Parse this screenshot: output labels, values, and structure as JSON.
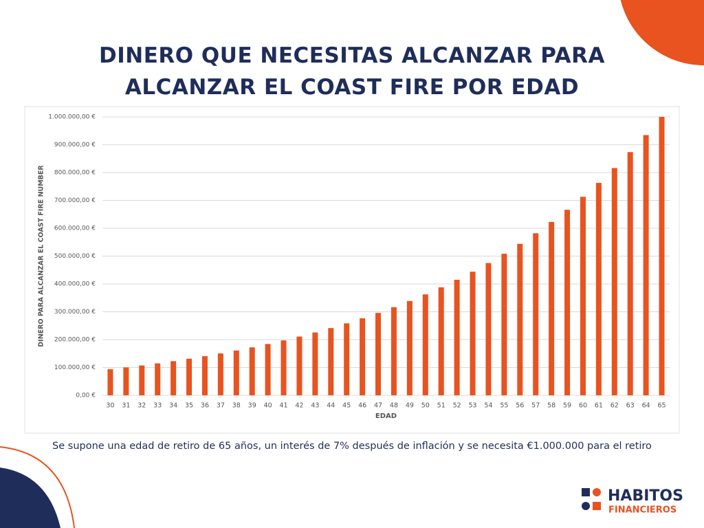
{
  "chart_data": {
    "type": "bar",
    "title": "DINERO QUE NECESITAS ALCANZAR PARA ALCANZAR EL COAST FIRE POR EDAD",
    "x_label": "EDAD",
    "y_label": "DINERO  PARA ALCANZAR EL COAST FIRE NUMBER",
    "categories": [
      "30",
      "31",
      "32",
      "33",
      "34",
      "35",
      "36",
      "37",
      "38",
      "39",
      "40",
      "41",
      "42",
      "43",
      "44",
      "45",
      "46",
      "47",
      "48",
      "49",
      "50",
      "51",
      "52",
      "53",
      "54",
      "55",
      "56",
      "57",
      "58",
      "59",
      "60",
      "61",
      "62",
      "63",
      "64",
      "65"
    ],
    "values": [
      93663,
      100219,
      107235,
      114741,
      122773,
      131367,
      140563,
      150402,
      160930,
      172195,
      184249,
      197147,
      210947,
      225713,
      241513,
      258419,
      276508,
      295864,
      316574,
      338735,
      362446,
      387817,
      414964,
      444012,
      475093,
      508349,
      543934,
      582009,
      622750,
      666342,
      712986,
      762895,
      816298,
      873439,
      934579,
      1000000
    ],
    "color": "#e8531f",
    "ylim": [
      0,
      1000000
    ],
    "yticks": [
      {
        "value": 0,
        "label": "0,00 €"
      },
      {
        "value": 100000,
        "label": "100.000,00 €"
      },
      {
        "value": 200000,
        "label": "200.000,00 €"
      },
      {
        "value": 300000,
        "label": "300.000,00 €"
      },
      {
        "value": 400000,
        "label": "400.000,00 €"
      },
      {
        "value": 500000,
        "label": "500.000,00 €"
      },
      {
        "value": 600000,
        "label": "600.000,00 €"
      },
      {
        "value": 700000,
        "label": "700.000,00 €"
      },
      {
        "value": 800000,
        "label": "800.000,00 €"
      },
      {
        "value": 900000,
        "label": "900.000,00 €"
      },
      {
        "value": 1000000,
        "label": "1.000.000,00 €"
      }
    ],
    "grid": true,
    "note": "Se supone una edad de retiro de 65 años, un interés de 7% después de inflación y se necesita €1.000.000 para el retiro"
  },
  "logo": {
    "line1": "HABITOS",
    "line2": "FINANCIEROS"
  }
}
